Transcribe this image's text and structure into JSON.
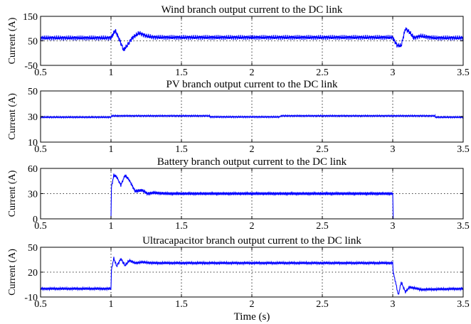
{
  "chart_data": [
    {
      "type": "line",
      "title": "Wind branch output current to the DC link",
      "ylabel": "Current (A)",
      "xlabel": "",
      "xlim": [
        0.5,
        3.5
      ],
      "ylim": [
        -50,
        150
      ],
      "xticks": [
        "0.5",
        "1",
        "1.5",
        "2",
        "2.5",
        "3",
        "3.5"
      ],
      "yticks": [
        "-50",
        "50",
        "150"
      ],
      "grid": true,
      "ripple": 10,
      "series": [
        {
          "color": "#0000ff",
          "x": [
            0.5,
            1.0,
            1.03,
            1.06,
            1.09,
            1.12,
            1.15,
            1.2,
            1.25,
            1.3,
            1.4,
            3.0,
            3.03,
            3.06,
            3.09,
            3.12,
            3.15,
            3.2,
            3.25,
            3.3,
            3.5
          ],
          "y": [
            62,
            62,
            92,
            55,
            12,
            35,
            62,
            82,
            70,
            65,
            64,
            64,
            32,
            30,
            100,
            85,
            62,
            70,
            65,
            62,
            62
          ]
        }
      ]
    },
    {
      "type": "line",
      "title": "PV branch output current to the DC link",
      "ylabel": "Current (A)",
      "xlabel": "",
      "xlim": [
        0.5,
        3.5
      ],
      "ylim": [
        10,
        50
      ],
      "xticks": [
        "0.5",
        "1",
        "1.5",
        "2",
        "2.5",
        "3",
        "3.5"
      ],
      "yticks": [
        "10",
        "30",
        "50"
      ],
      "grid": true,
      "ripple": 0.6,
      "series": [
        {
          "color": "#0000ff",
          "x": [
            0.5,
            1.0,
            1.0,
            1.7,
            1.7,
            2.2,
            2.2,
            3.3,
            3.3,
            3.5
          ],
          "y": [
            29.5,
            29.5,
            30.5,
            30.5,
            29.7,
            29.7,
            30.5,
            30.5,
            29.5,
            29.5
          ]
        }
      ]
    },
    {
      "type": "line",
      "title": "Battery branch output current to the DC link",
      "ylabel": "Current (A)",
      "xlabel": "",
      "xlim": [
        0.5,
        3.5
      ],
      "ylim": [
        0,
        60
      ],
      "xticks": [
        "0.5",
        "1",
        "1.5",
        "2",
        "2.5",
        "3",
        "3.5"
      ],
      "yticks": [
        "0",
        "30",
        "60"
      ],
      "grid": true,
      "ripple": 1.8,
      "series": [
        {
          "color": "#0000ff",
          "x": [
            0.5,
            1.0,
            1.0,
            1.02,
            1.04,
            1.07,
            1.1,
            1.13,
            1.17,
            1.22,
            1.26,
            1.3,
            1.4,
            3.0,
            3.0,
            3.5
          ],
          "y": [
            0,
            0,
            35,
            52,
            50,
            40,
            52,
            46,
            33,
            34,
            30,
            31,
            30,
            30,
            0,
            0
          ]
        }
      ]
    },
    {
      "type": "line",
      "title": "Ultracapacitor branch output current to the DC link",
      "ylabel": "Current (A)",
      "xlabel": "Time (s)",
      "xlim": [
        0.5,
        3.5
      ],
      "ylim": [
        -10,
        50
      ],
      "xticks": [
        "0.5",
        "1",
        "1.5",
        "2",
        "2.5",
        "3",
        "3.5"
      ],
      "yticks": [
        "-10",
        "20",
        "50"
      ],
      "grid": true,
      "ripple": 1.5,
      "series": [
        {
          "color": "#0000ff",
          "x": [
            0.5,
            1.0,
            1.0,
            1.02,
            1.04,
            1.07,
            1.1,
            1.13,
            1.17,
            1.22,
            1.3,
            1.4,
            3.0,
            3.0,
            3.02,
            3.04,
            3.06,
            3.09,
            3.12,
            3.2,
            3.5
          ],
          "y": [
            0,
            0,
            20,
            37,
            27,
            36,
            28,
            34,
            31,
            32,
            31,
            31,
            31,
            22,
            8,
            -8,
            8,
            -4,
            2,
            -1,
            0
          ]
        }
      ]
    }
  ]
}
